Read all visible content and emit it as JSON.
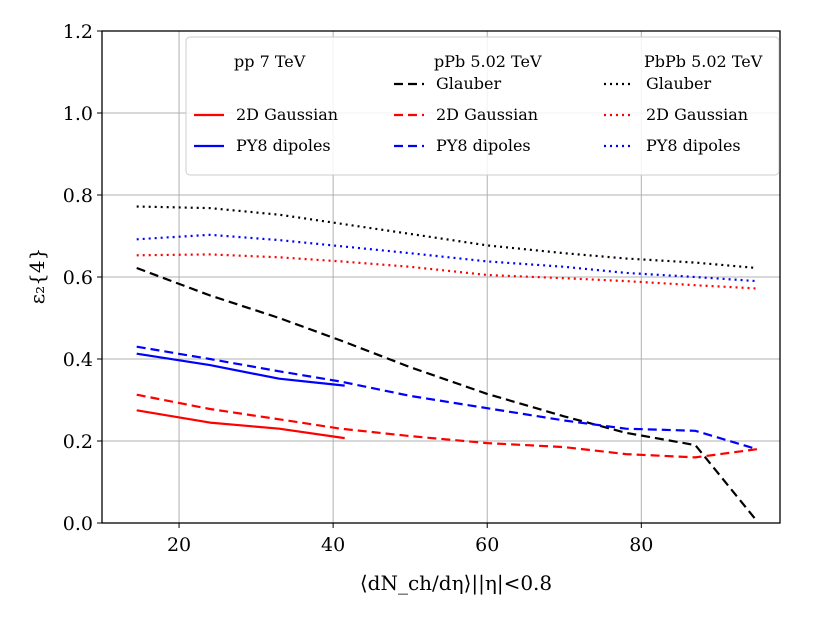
{
  "chart_data": {
    "type": "line",
    "xlabel": "⟨dN_ch/dη⟩||η|<0.8",
    "ylabel": "ε₂{4}",
    "xlim": [
      10,
      98
    ],
    "ylim": [
      0.0,
      1.2
    ],
    "xticks": [
      20,
      40,
      60,
      80
    ],
    "xtick_labels": [
      "20",
      "40",
      "60",
      "80"
    ],
    "yticks": [
      0.0,
      0.2,
      0.4,
      0.6,
      0.8,
      1.0,
      1.2
    ],
    "ytick_labels": [
      "0.0",
      "0.2",
      "0.4",
      "0.6",
      "0.8",
      "1.0",
      "1.2"
    ],
    "grid": true,
    "legend_position": "top-right",
    "legend_headers": [
      "pp 7 TeV",
      "pPb 5.02 TeV",
      "PbPb 5.02 TeV"
    ],
    "series": [
      {
        "name": "2D Gaussian",
        "system": "pp 7 TeV",
        "color": "#ff0000",
        "style": "solid",
        "x": [
          14.5,
          24,
          33,
          41.5
        ],
        "y": [
          0.275,
          0.245,
          0.23,
          0.207
        ]
      },
      {
        "name": "PY8 dipoles",
        "system": "pp 7 TeV",
        "color": "#0000ff",
        "style": "solid",
        "x": [
          14.5,
          24,
          33,
          41.5
        ],
        "y": [
          0.413,
          0.385,
          0.352,
          0.335
        ]
      },
      {
        "name": "Glauber",
        "system": "pPb 5.02 TeV",
        "color": "#000000",
        "style": "dashed",
        "x": [
          14.5,
          24,
          33,
          41,
          50,
          60,
          70,
          78,
          87,
          95
        ],
        "y": [
          0.622,
          0.555,
          0.5,
          0.445,
          0.38,
          0.315,
          0.26,
          0.22,
          0.19,
          0.005
        ]
      },
      {
        "name": "2D Gaussian",
        "system": "pPb 5.02 TeV",
        "color": "#ff0000",
        "style": "dashed",
        "x": [
          14.5,
          24,
          33,
          41,
          50,
          60,
          70,
          78,
          87,
          95
        ],
        "y": [
          0.313,
          0.278,
          0.253,
          0.23,
          0.212,
          0.195,
          0.185,
          0.168,
          0.16,
          0.18
        ]
      },
      {
        "name": "PY8 dipoles",
        "system": "pPb 5.02 TeV",
        "color": "#0000ff",
        "style": "dashed",
        "x": [
          14.5,
          24,
          33,
          41,
          50,
          60,
          70,
          78,
          87,
          95
        ],
        "y": [
          0.43,
          0.4,
          0.37,
          0.345,
          0.31,
          0.28,
          0.25,
          0.23,
          0.225,
          0.18
        ]
      },
      {
        "name": "Glauber",
        "system": "PbPb 5.02 TeV",
        "color": "#000000",
        "style": "dotted",
        "x": [
          14.5,
          24,
          33,
          41,
          50,
          60,
          70,
          78,
          87,
          95
        ],
        "y": [
          0.772,
          0.768,
          0.752,
          0.73,
          0.705,
          0.677,
          0.658,
          0.645,
          0.635,
          0.622
        ]
      },
      {
        "name": "2D Gaussian",
        "system": "PbPb 5.02 TeV",
        "color": "#ff0000",
        "style": "dotted",
        "x": [
          14.5,
          24,
          33,
          41,
          50,
          60,
          70,
          78,
          87,
          95
        ],
        "y": [
          0.653,
          0.655,
          0.648,
          0.638,
          0.625,
          0.605,
          0.597,
          0.59,
          0.58,
          0.572
        ]
      },
      {
        "name": "PY8 dipoles",
        "system": "PbPb 5.02 TeV",
        "color": "#0000ff",
        "style": "dotted",
        "x": [
          14.5,
          24,
          33,
          41,
          50,
          60,
          70,
          78,
          87,
          95
        ],
        "y": [
          0.692,
          0.703,
          0.69,
          0.675,
          0.658,
          0.638,
          0.625,
          0.61,
          0.6,
          0.59
        ]
      }
    ]
  }
}
